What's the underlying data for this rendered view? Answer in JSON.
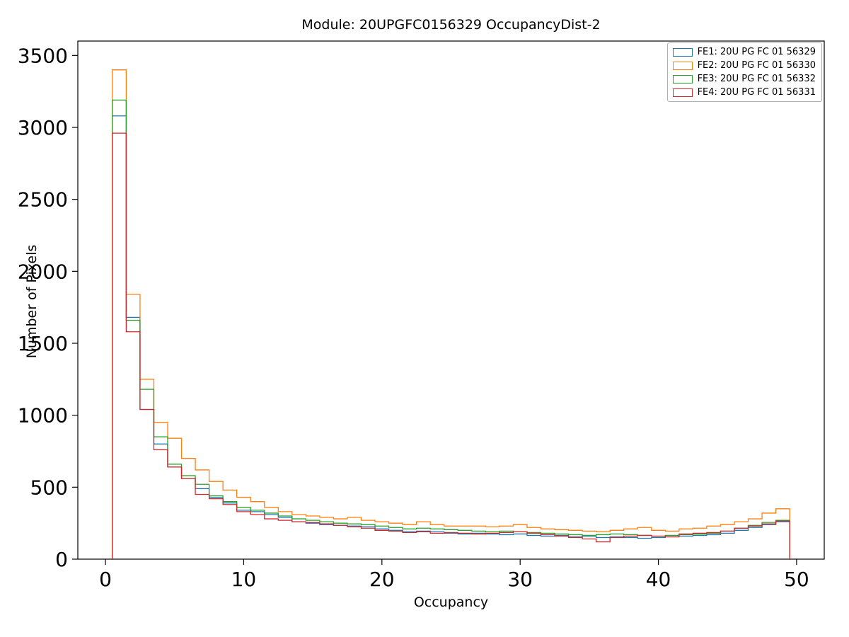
{
  "title": "Module: 20UPGFC0156329 OccupancyDist-2",
  "chart_data": {
    "type": "step-histogram",
    "title": "Module: 20UPGFC0156329 OccupancyDist-2",
    "xlabel": "Occupancy",
    "ylabel": "Number of Pixels",
    "xlim": [
      -2,
      52
    ],
    "ylim": [
      0,
      3600
    ],
    "x_ticks": [
      0,
      10,
      20,
      30,
      40,
      50
    ],
    "y_ticks": [
      0,
      500,
      1000,
      1500,
      2000,
      2500,
      3000,
      3500
    ],
    "bin_start": 0.5,
    "bin_width": 1,
    "grid": false,
    "legend_position": "upper-right",
    "series": [
      {
        "name": "FE1: 20U PG FC 01 56329",
        "color": "#1f77b4",
        "values": [
          3080,
          1680,
          1040,
          800,
          640,
          560,
          490,
          430,
          390,
          340,
          330,
          310,
          290,
          260,
          250,
          240,
          235,
          230,
          225,
          210,
          200,
          190,
          195,
          190,
          180,
          175,
          180,
          175,
          170,
          175,
          165,
          160,
          165,
          155,
          160,
          150,
          155,
          150,
          145,
          150,
          155,
          160,
          165,
          170,
          180,
          200,
          220,
          240,
          260
        ]
      },
      {
        "name": "FE2: 20U PG FC 01 56330",
        "color": "#ff7f0e",
        "values": [
          3400,
          1840,
          1250,
          950,
          840,
          700,
          620,
          540,
          480,
          430,
          400,
          360,
          330,
          310,
          300,
          290,
          280,
          290,
          270,
          260,
          250,
          240,
          260,
          240,
          230,
          230,
          230,
          225,
          230,
          240,
          220,
          210,
          205,
          200,
          195,
          190,
          200,
          210,
          220,
          200,
          195,
          210,
          215,
          230,
          240,
          260,
          280,
          320,
          350
        ]
      },
      {
        "name": "FE3: 20U PG FC 01 56332",
        "color": "#2ca02c",
        "values": [
          3190,
          1660,
          1180,
          850,
          660,
          580,
          520,
          440,
          400,
          360,
          340,
          320,
          300,
          280,
          270,
          260,
          250,
          245,
          240,
          230,
          220,
          210,
          215,
          210,
          205,
          200,
          195,
          190,
          195,
          190,
          185,
          180,
          175,
          170,
          165,
          170,
          175,
          170,
          165,
          160,
          165,
          170,
          175,
          180,
          195,
          215,
          235,
          255,
          270
        ]
      },
      {
        "name": "FE4: 20U PG FC 01 56331",
        "color": "#d62728",
        "values": [
          2960,
          1580,
          1040,
          760,
          640,
          560,
          450,
          420,
          380,
          330,
          310,
          280,
          270,
          260,
          255,
          245,
          235,
          225,
          215,
          200,
          195,
          185,
          190,
          180,
          185,
          180,
          175,
          180,
          185,
          190,
          180,
          170,
          160,
          150,
          140,
          120,
          150,
          160,
          165,
          160,
          155,
          175,
          180,
          185,
          195,
          215,
          230,
          245,
          265
        ]
      }
    ]
  }
}
